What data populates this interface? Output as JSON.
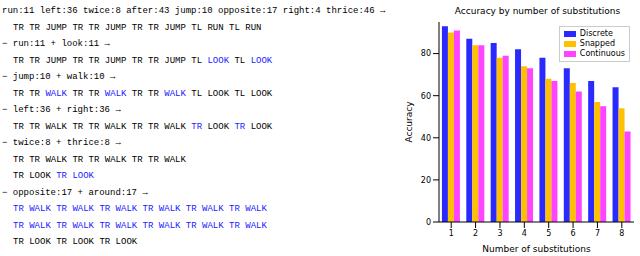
{
  "listing": [
    {
      "edit": "run:11 left:36 twice:8 after:43 jump:10 opposite:17 right:4 thrice:46 →",
      "result": [
        [
          {
            "text": "TR TR JUMP TR TR JUMP TR TR JUMP TL RUN TL RUN"
          }
        ]
      ]
    },
    {
      "edit": "− run:11 + look:11 →",
      "result": [
        [
          {
            "text": "TR TR JUMP TR TR JUMP TR TR JUMP TL "
          },
          {
            "text": "LOOK",
            "color": "#1a1aff"
          },
          {
            "text": " TL "
          },
          {
            "text": "LOOK",
            "color": "#1a1aff"
          }
        ]
      ]
    },
    {
      "edit": "− jump:10 + walk:10 →",
      "result": [
        [
          {
            "text": "TR TR "
          },
          {
            "text": "WALK",
            "color": "#1a1aff"
          },
          {
            "text": " TR TR "
          },
          {
            "text": "WALK",
            "color": "#1a1aff"
          },
          {
            "text": " TR TR "
          },
          {
            "text": "WALK",
            "color": "#1a1aff"
          },
          {
            "text": " TL LOOK TL LOOK"
          }
        ]
      ]
    },
    {
      "edit": "− left:36 + right:36 →",
      "result": [
        [
          {
            "text": "TR TR WALK TR TR WALK TR TR WALK "
          },
          {
            "text": "TR",
            "color": "#1a1aff"
          },
          {
            "text": " LOOK "
          },
          {
            "text": "TR",
            "color": "#1a1aff"
          },
          {
            "text": " LOOK"
          }
        ]
      ]
    },
    {
      "edit": "− twice:8 + thrice:8 →",
      "result": [
        [
          {
            "text": "TR TR WALK TR TR WALK TR TR WALK"
          }
        ],
        [
          {
            "text": "TR LOOK "
          },
          {
            "text": "TR LOOK",
            "color": "#1a1aff"
          }
        ]
      ]
    },
    {
      "edit": "− opposite:17 + around:17 →",
      "result": [
        [
          {
            "text": "TR WALK TR WALK TR WALK TR WALK TR WALK TR WALK",
            "color": "#1a1aff"
          }
        ],
        [
          {
            "text": "TR WALK TR WALK TR WALK TR WALK TR WALK TR WALK",
            "color": "#1a1aff"
          }
        ],
        [
          {
            "text": "TR LOOK TR LOOK TR LOOK"
          }
        ]
      ]
    }
  ],
  "chart_data": {
    "type": "bar",
    "title": "Accuracy by number of substitutions",
    "x_label": "Number of substitutions",
    "y_label": "Accuracy",
    "categories": [
      1,
      2,
      3,
      4,
      5,
      6,
      7,
      8
    ],
    "series": [
      {
        "name": "Discrete",
        "color": "#2a2aff",
        "values": [
          93,
          87,
          85,
          82,
          78,
          73,
          67,
          64
        ]
      },
      {
        "name": "Snapped",
        "color": "#ffc000",
        "values": [
          90,
          84,
          78,
          74,
          68,
          66,
          57,
          54
        ]
      },
      {
        "name": "Continuous",
        "color": "#ff44ff",
        "values": [
          91,
          84,
          79,
          73,
          67,
          62,
          55,
          43
        ]
      }
    ],
    "ylim": [
      0,
      95
    ],
    "yticks": [
      0,
      20,
      40,
      60,
      80
    ],
    "grid": false,
    "legend": "upper right"
  }
}
